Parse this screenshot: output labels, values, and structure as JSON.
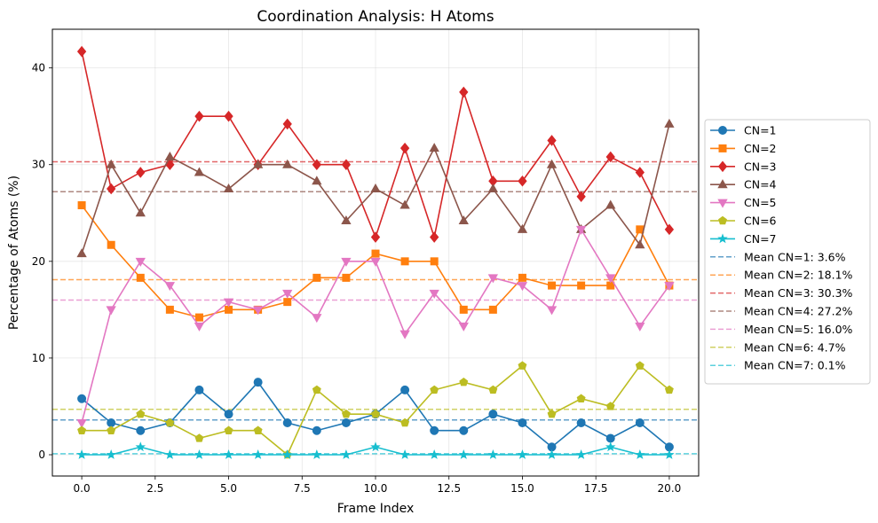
{
  "chart_data": {
    "type": "line",
    "title": "Coordination Analysis: H Atoms",
    "xlabel": "Frame Index",
    "ylabel": "Percentage of Atoms (%)",
    "xlim": [
      -1,
      21
    ],
    "ylim": [
      -2.2,
      44
    ],
    "xticks": [
      0,
      2.5,
      5,
      7.5,
      10,
      12.5,
      15,
      17.5,
      20
    ],
    "xtick_labels": [
      "0.0",
      "2.5",
      "5.0",
      "7.5",
      "10.0",
      "12.5",
      "15.0",
      "17.5",
      "20.0"
    ],
    "yticks": [
      0,
      10,
      20,
      30,
      40
    ],
    "ytick_labels": [
      "0",
      "10",
      "20",
      "30",
      "40"
    ],
    "grid": true,
    "legend_position": "outside-right",
    "x": [
      0,
      1,
      2,
      3,
      4,
      5,
      6,
      7,
      8,
      9,
      10,
      11,
      12,
      13,
      14,
      15,
      16,
      17,
      18,
      19,
      20
    ],
    "series": [
      {
        "name": "CN=1",
        "color": "#1f77b4",
        "marker": "circle",
        "values": [
          5.8,
          3.3,
          2.5,
          3.3,
          6.7,
          4.2,
          7.5,
          3.3,
          2.5,
          3.3,
          4.2,
          6.7,
          2.5,
          2.5,
          4.2,
          3.3,
          0.8,
          3.3,
          1.7,
          3.3,
          0.8
        ]
      },
      {
        "name": "CN=2",
        "color": "#ff7f0e",
        "marker": "square",
        "values": [
          25.8,
          21.7,
          18.3,
          15.0,
          14.2,
          15.0,
          15.0,
          15.8,
          18.3,
          18.3,
          20.8,
          20.0,
          20.0,
          15.0,
          15.0,
          18.3,
          17.5,
          17.5,
          17.5,
          23.3,
          17.5
        ]
      },
      {
        "name": "CN=3",
        "color": "#d62728",
        "marker": "diamond",
        "values": [
          41.7,
          27.5,
          29.2,
          30.0,
          35.0,
          35.0,
          30.0,
          34.2,
          30.0,
          30.0,
          22.5,
          31.7,
          22.5,
          37.5,
          28.3,
          28.3,
          32.5,
          26.7,
          30.8,
          29.2,
          23.3
        ]
      },
      {
        "name": "CN=4",
        "color": "#8c564b",
        "marker": "triangle-up",
        "values": [
          20.8,
          30.0,
          25.0,
          30.8,
          29.2,
          27.5,
          30.0,
          30.0,
          28.3,
          24.2,
          27.5,
          25.8,
          31.7,
          24.2,
          27.5,
          23.3,
          30.0,
          23.3,
          25.8,
          21.7,
          34.2
        ]
      },
      {
        "name": "CN=5",
        "color": "#e377c2",
        "marker": "triangle-down",
        "values": [
          3.3,
          15.0,
          20.0,
          17.5,
          13.3,
          15.8,
          15.0,
          16.7,
          14.2,
          20.0,
          20.0,
          12.5,
          16.7,
          13.3,
          18.3,
          17.5,
          15.0,
          23.3,
          18.3,
          13.3,
          17.5
        ]
      },
      {
        "name": "CN=6",
        "color": "#bcbd22",
        "marker": "pentagon",
        "values": [
          2.5,
          2.5,
          4.2,
          3.3,
          1.7,
          2.5,
          2.5,
          0.0,
          6.7,
          4.2,
          4.2,
          3.3,
          6.7,
          7.5,
          6.7,
          9.2,
          4.2,
          5.8,
          5.0,
          9.2,
          6.7
        ]
      },
      {
        "name": "CN=7",
        "color": "#17becf",
        "marker": "star",
        "values": [
          0.0,
          0.0,
          0.8,
          0.0,
          0.0,
          0.0,
          0.0,
          0.0,
          0.0,
          0.0,
          0.8,
          0.0,
          0.0,
          0.0,
          0.0,
          0.0,
          0.0,
          0.0,
          0.8,
          0.0,
          0.0
        ]
      }
    ],
    "mean_lines": [
      {
        "label": "Mean CN=1: 3.6%",
        "value": 3.6,
        "color": "#1f77b4"
      },
      {
        "label": "Mean CN=2: 18.1%",
        "value": 18.1,
        "color": "#ff7f0e"
      },
      {
        "label": "Mean CN=3: 30.3%",
        "value": 30.3,
        "color": "#d62728"
      },
      {
        "label": "Mean CN=4: 27.2%",
        "value": 27.2,
        "color": "#8c564b"
      },
      {
        "label": "Mean CN=5: 16.0%",
        "value": 16.0,
        "color": "#e377c2"
      },
      {
        "label": "Mean CN=6: 4.7%",
        "value": 4.7,
        "color": "#bcbd22"
      },
      {
        "label": "Mean CN=7: 0.1%",
        "value": 0.1,
        "color": "#17becf"
      }
    ]
  }
}
